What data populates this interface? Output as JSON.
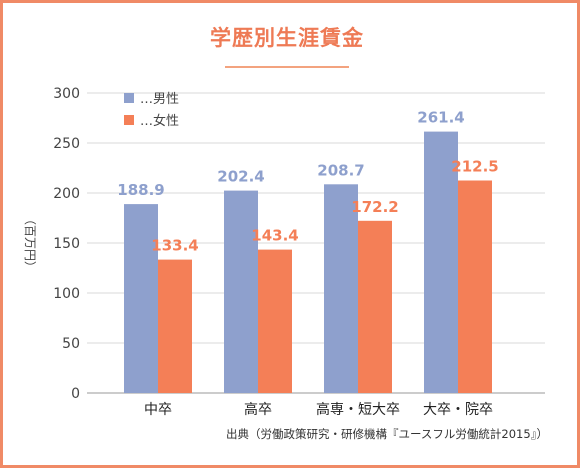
{
  "title": "学歴別生涯賃金",
  "source": "出典（労働政策研究・研修機構『ユースフル労働統計2015』）",
  "colors": {
    "male": "#8ea0cd",
    "female": "#f47f57",
    "accent": "#f08a66"
  },
  "chart_data": {
    "type": "bar",
    "title": "学歴別生涯賃金",
    "ylabel": "（百万円）",
    "xlabel": "",
    "ylim": [
      0,
      300
    ],
    "yticks": [
      0,
      50,
      100,
      150,
      200,
      250,
      300
    ],
    "grid": true,
    "legend_position": "top-left",
    "categories": [
      "中卒",
      "高卒",
      "高専・短大卒",
      "大卒・院卒"
    ],
    "series": [
      {
        "name": "…男性",
        "color": "#8ea0cd",
        "values": [
          188.9,
          202.4,
          208.7,
          261.4
        ]
      },
      {
        "name": "…女性",
        "color": "#f47f57",
        "values": [
          133.4,
          143.4,
          172.2,
          212.5
        ]
      }
    ]
  }
}
